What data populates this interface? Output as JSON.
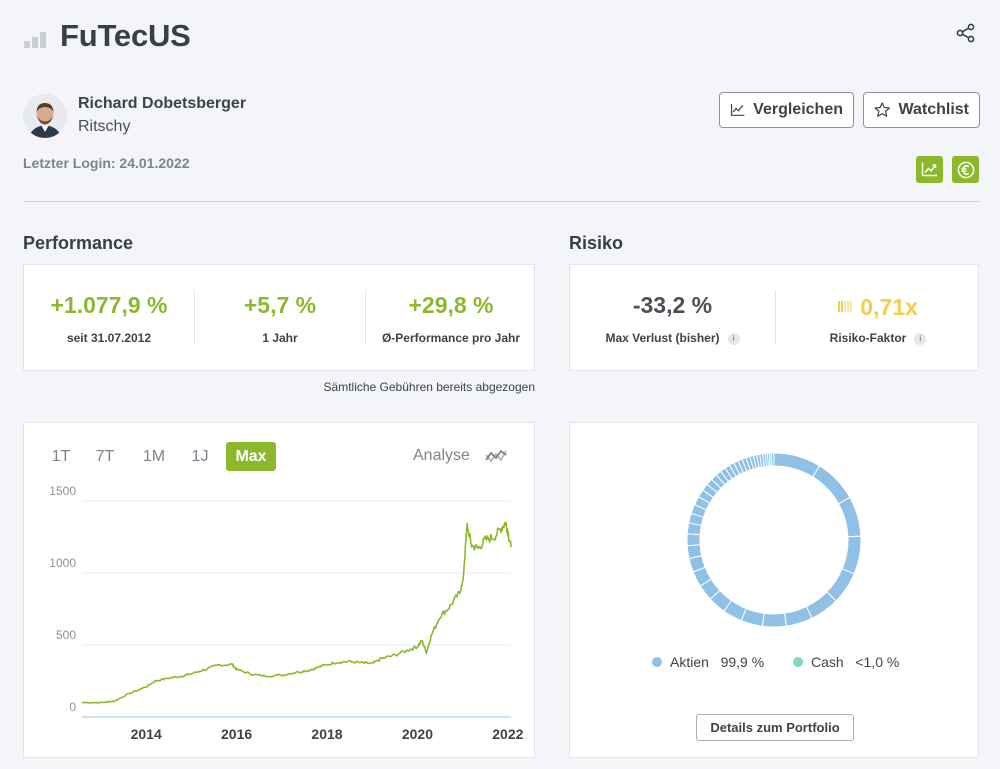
{
  "header": {
    "title": "FuTecUS",
    "share_icon": "share-icon",
    "logo_icon": "bar-chart-logo-icon"
  },
  "profile": {
    "name": "Richard Dobetsberger",
    "handle": "Ritschy",
    "last_login": "Letzter Login: 24.01.2022"
  },
  "actions": {
    "compare_label": "Vergleichen",
    "watchlist_label": "Watchlist",
    "icons": [
      "chart-trend-icon",
      "euro-icon"
    ]
  },
  "performance": {
    "heading": "Performance",
    "kpis": [
      {
        "value": "+1.077,9 %",
        "label": "seit 31.07.2012"
      },
      {
        "value": "+5,7 %",
        "label": "1 Jahr"
      },
      {
        "value": "+29,8 %",
        "label": "Ø-Performance pro Jahr"
      }
    ],
    "fee_note": "Sämtliche Gebühren bereits abgezogen"
  },
  "risk": {
    "heading": "Risiko",
    "max_loss": {
      "value": "-33,2 %",
      "label": "Max Verlust (bisher)"
    },
    "risk_factor": {
      "value": "0,71x",
      "label": "Risiko-Faktor",
      "level": 0.3
    },
    "info_glyph": "i"
  },
  "chart": {
    "tabs": [
      "1T",
      "7T",
      "1M",
      "1J",
      "Max"
    ],
    "active_tab": "Max",
    "analyse_label": "Analyse",
    "colors": {
      "line": "#8cb92c",
      "grid": "#e6e9ec"
    }
  },
  "chart_data": {
    "type": "line",
    "x_ticks": [
      "2014",
      "2016",
      "2018",
      "2020",
      "2022"
    ],
    "y_ticks": [
      "0",
      "500",
      "1000",
      "1500"
    ],
    "ylim": [
      0,
      1500
    ],
    "xlim": [
      "2012-07-31",
      "2022-01-24"
    ],
    "series": [
      {
        "values": [
          [
            2012.58,
            100
          ],
          [
            2013.0,
            100
          ],
          [
            2013.3,
            110
          ],
          [
            2013.6,
            160
          ],
          [
            2014.0,
            210
          ],
          [
            2014.2,
            250
          ],
          [
            2014.5,
            270
          ],
          [
            2014.8,
            285
          ],
          [
            2015.0,
            300
          ],
          [
            2015.3,
            330
          ],
          [
            2015.6,
            360
          ],
          [
            2015.9,
            365
          ],
          [
            2016.0,
            330
          ],
          [
            2016.3,
            300
          ],
          [
            2016.6,
            285
          ],
          [
            2017.0,
            290
          ],
          [
            2017.3,
            310
          ],
          [
            2017.6,
            325
          ],
          [
            2017.9,
            355
          ],
          [
            2018.2,
            380
          ],
          [
            2018.5,
            385
          ],
          [
            2018.8,
            375
          ],
          [
            2019.0,
            370
          ],
          [
            2019.2,
            405
          ],
          [
            2019.5,
            430
          ],
          [
            2019.8,
            465
          ],
          [
            2020.0,
            490
          ],
          [
            2020.1,
            530
          ],
          [
            2020.2,
            450
          ],
          [
            2020.3,
            560
          ],
          [
            2020.5,
            700
          ],
          [
            2020.7,
            760
          ],
          [
            2020.9,
            850
          ],
          [
            2021.0,
            920
          ],
          [
            2021.1,
            1330
          ],
          [
            2021.2,
            1190
          ],
          [
            2021.35,
            1170
          ],
          [
            2021.5,
            1230
          ],
          [
            2021.7,
            1250
          ],
          [
            2021.85,
            1310
          ],
          [
            2021.95,
            1350
          ],
          [
            2022.0,
            1290
          ],
          [
            2022.07,
            1180
          ]
        ]
      }
    ]
  },
  "allocation": {
    "type": "pie",
    "categories": [
      "Aktien",
      "Cash"
    ],
    "labels": [
      {
        "name": "Aktien",
        "value": "99,9 %",
        "color": "#8ec1e5"
      },
      {
        "name": "Cash",
        "value": "<1,0 %",
        "color": "#7fd8b8"
      }
    ],
    "aktien_segments": [
      9.2,
      8.5,
      7.8,
      7.4,
      6.3,
      5.7,
      5.2,
      4.6,
      4.2,
      3.8,
      3.5,
      3.2,
      3.0,
      2.7,
      2.5,
      2.3,
      2.1,
      1.9,
      1.8,
      1.7,
      1.5,
      1.4,
      1.3,
      1.2,
      1.1,
      1.05,
      1.0,
      0.95,
      0.9,
      0.85,
      0.8,
      0.75,
      0.7,
      0.65,
      0.6,
      0.55,
      0.5,
      0.45,
      0.4,
      0.35
    ],
    "cash_share": 0.5,
    "details_label": "Details zum Portfolio"
  }
}
